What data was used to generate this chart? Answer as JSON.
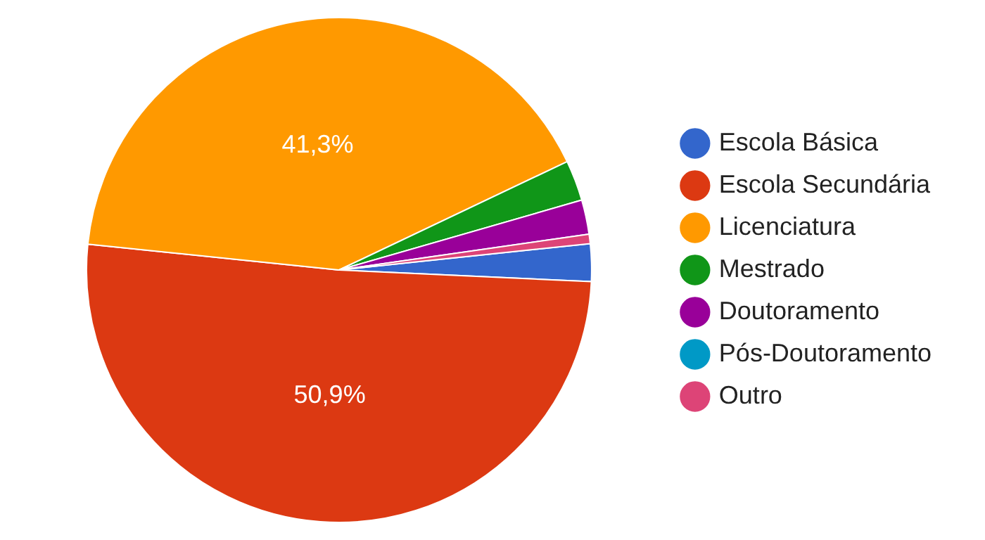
{
  "chart_data": {
    "type": "pie",
    "categories": [
      "Escola Básica",
      "Escola Secundária",
      "Licenciatura",
      "Mestrado",
      "Doutoramento",
      "Pós-Doutoramento",
      "Outro"
    ],
    "values": [
      2.4,
      50.9,
      41.3,
      2.6,
      2.2,
      0,
      0.6
    ],
    "colors": [
      "#3366cc",
      "#dc3912",
      "#ff9900",
      "#109618",
      "#990099",
      "#0099c6",
      "#dd4477"
    ],
    "value_labels": [
      null,
      "50,9%",
      "41,3%",
      null,
      null,
      null,
      null
    ],
    "legend": "right"
  }
}
